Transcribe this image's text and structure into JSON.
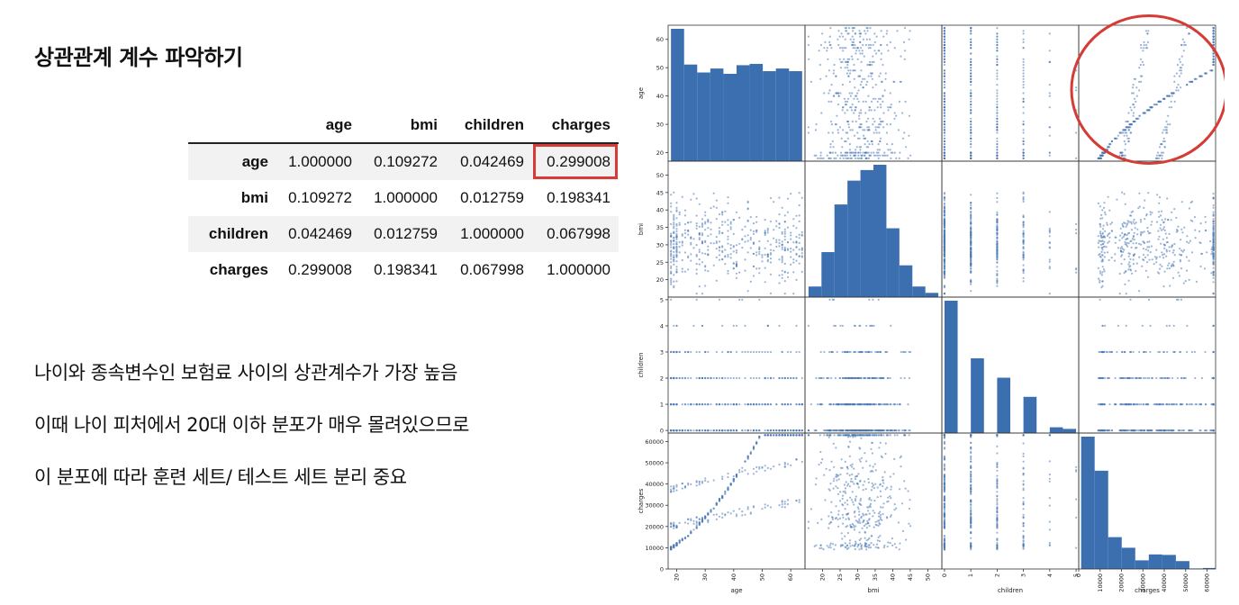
{
  "title": "상관관계 계수 파악하기",
  "table": {
    "columns": [
      "age",
      "bmi",
      "children",
      "charges"
    ],
    "rows": [
      {
        "name": "age",
        "values": [
          "1.000000",
          "0.109272",
          "0.042469",
          "0.299008"
        ]
      },
      {
        "name": "bmi",
        "values": [
          "0.109272",
          "1.000000",
          "0.012759",
          "0.198341"
        ]
      },
      {
        "name": "children",
        "values": [
          "0.042469",
          "0.012759",
          "1.000000",
          "0.067998"
        ]
      },
      {
        "name": "charges",
        "values": [
          "0.299008",
          "0.198341",
          "0.067998",
          "1.000000"
        ]
      }
    ],
    "highlight": {
      "row": "age",
      "column": "charges"
    }
  },
  "notes": [
    "나이와 종속변수인 보험료 사이의 상관계수가 가장 높음",
    "이때 나이 피처에서 20대 이하 분포가 매우 몰려있으므로",
    "이 분포에 따라 훈련 세트/ 테스트 세트 분리 중요"
  ],
  "colors": {
    "marker": "#4a78b5",
    "bar": "#3b6fb0",
    "highlight": "#d43c35"
  },
  "chart_data": {
    "type": "scatter",
    "variables": [
      "age",
      "bmi",
      "children",
      "charges"
    ],
    "ranges": {
      "age": [
        17,
        65
      ],
      "bmi": [
        15,
        54
      ],
      "children": [
        -0.1,
        5.1
      ],
      "charges": [
        0,
        64000
      ]
    },
    "ticks": {
      "age": {
        "values": [
          20,
          30,
          40,
          50,
          60
        ],
        "labels": [
          "20",
          "30",
          "40",
          "50",
          "60"
        ]
      },
      "bmi": {
        "values": [
          20,
          25,
          30,
          35,
          40,
          45,
          50
        ],
        "labels": [
          "20",
          "25",
          "30",
          "35",
          "40",
          "45",
          "50"
        ]
      },
      "children": {
        "values": [
          0,
          1,
          2,
          3,
          4,
          5
        ],
        "labels": [
          "0",
          "1",
          "2",
          "3",
          "4",
          "5"
        ]
      },
      "charges": {
        "values": [
          0,
          10000,
          20000,
          30000,
          40000,
          50000,
          60000
        ],
        "labels": [
          "0",
          "10000",
          "20000",
          "30000",
          "40000",
          "50000",
          "60000"
        ]
      }
    },
    "histograms": {
      "age": {
        "edges": [
          18,
          22.6,
          27.2,
          31.8,
          36.4,
          41,
          45.6,
          50.2,
          54.8,
          59.4,
          64
        ],
        "counts": [
          200,
          146,
          134,
          140,
          132,
          145,
          147,
          136,
          140,
          136
        ]
      },
      "bmi": {
        "edges": [
          16,
          19.7,
          23.4,
          27.1,
          30.8,
          34.5,
          38.2,
          41.9,
          45.6,
          49.3,
          53
        ],
        "counts": [
          20,
          85,
          175,
          220,
          240,
          250,
          130,
          60,
          20,
          8
        ]
      },
      "children": {
        "edges": [
          0,
          0.5,
          1,
          1.5,
          2,
          2.5,
          3,
          3.5,
          4,
          4.5,
          5
        ],
        "counts": [
          574,
          0,
          324,
          0,
          240,
          0,
          157,
          0,
          25,
          18
        ]
      },
      "charges": {
        "edges": [
          1120,
          7450,
          13780,
          20110,
          26440,
          32770,
          39100,
          45430,
          51760,
          58090,
          63770
        ],
        "counts": [
          536,
          398,
          129,
          86,
          35,
          59,
          57,
          32,
          2,
          4
        ]
      }
    },
    "relationship_highlight": {
      "x": "charges",
      "y": "age"
    }
  }
}
